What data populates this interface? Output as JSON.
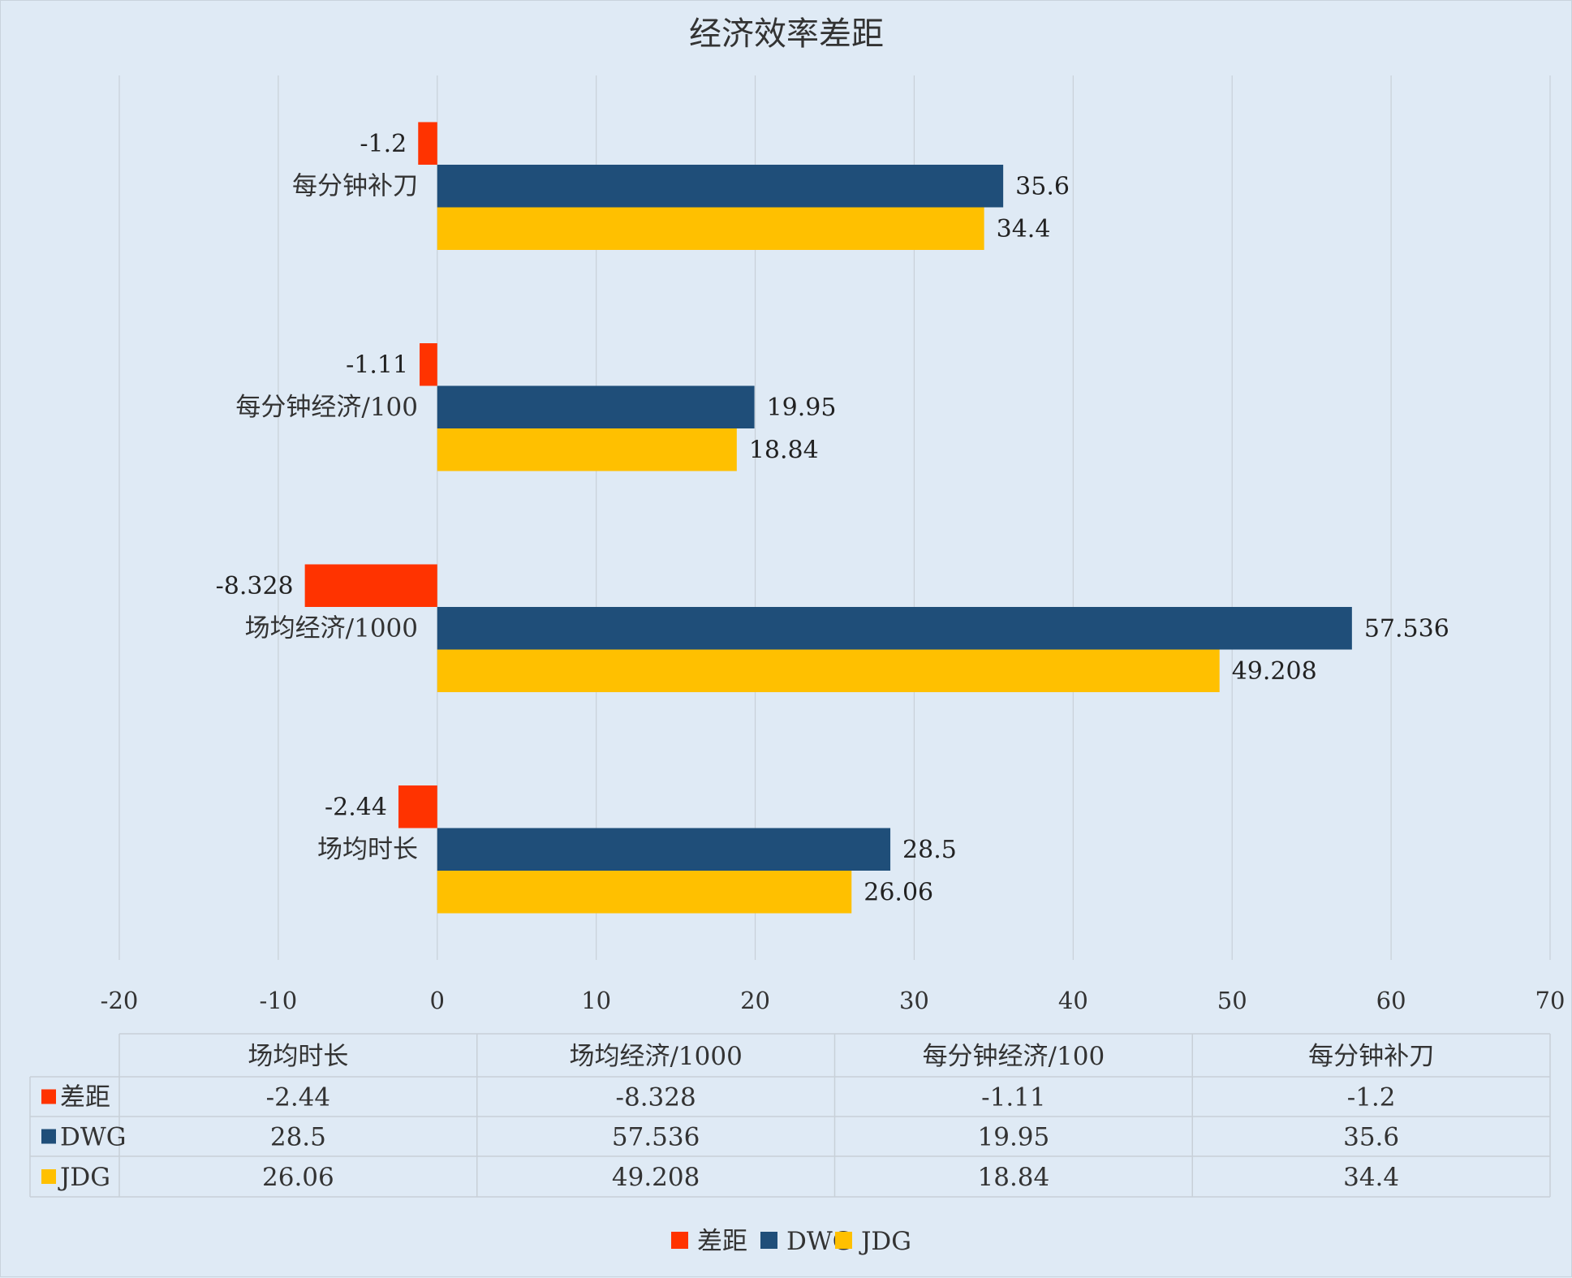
{
  "chart_data": {
    "type": "bar",
    "orientation": "horizontal",
    "title": "经济效率差距",
    "categories": [
      "场均时长",
      "场均经济/1000",
      "每分钟经济/100",
      "每分钟补刀"
    ],
    "series": [
      {
        "name": "差距",
        "color": "#ff3300",
        "values": [
          -2.44,
          -8.328,
          -1.11,
          -1.2
        ],
        "labels": [
          "-2.44",
          "-8.328",
          "-1.11",
          "-1.2"
        ]
      },
      {
        "name": "DWG",
        "color": "#1f4e79",
        "values": [
          28.5,
          57.536,
          19.95,
          35.6
        ],
        "labels": [
          "28.5",
          "57.536",
          "19.95",
          "35.6"
        ]
      },
      {
        "name": "JDG",
        "color": "#ffc000",
        "values": [
          26.06,
          49.208,
          18.84,
          34.4
        ],
        "labels": [
          "26.06",
          "49.208",
          "18.84",
          "34.4"
        ]
      }
    ],
    "xlim": [
      -20,
      70
    ],
    "xticks": [
      "-20",
      "-10",
      "0",
      "10",
      "20",
      "30",
      "40",
      "50",
      "60",
      "70"
    ],
    "grid": true,
    "legend": "bottom",
    "data_table": true
  }
}
